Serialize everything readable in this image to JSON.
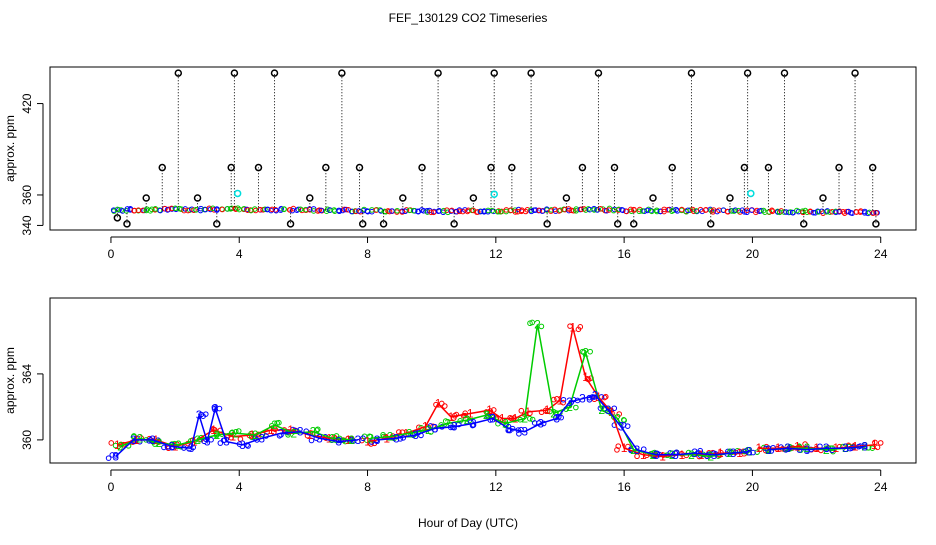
{
  "title": "FEF_130129  CO2 Timeseries",
  "xlabel": "Hour of Day (UTC)",
  "colors": {
    "one": "#ff0000",
    "two": "#00cc00",
    "three": "#0000ff",
    "outlier": "#000000",
    "cyan": "#00dddd",
    "frame": "#000000"
  },
  "chart_data": [
    {
      "type": "scatter",
      "panel": "top",
      "ylabel": "approx. ppm",
      "xlim": [
        -1.9,
        25.1
      ],
      "ylim": [
        337,
        444
      ],
      "xticks": [
        0,
        4,
        8,
        12,
        16,
        20,
        24
      ],
      "xtick_labels": [
        "0",
        "4",
        "8",
        "12",
        "16",
        "20",
        "24"
      ],
      "yticks": [
        340,
        360,
        420
      ],
      "ytick_labels": [
        "340",
        "360",
        "420"
      ],
      "spike_values_ppm": [
        341,
        358,
        378,
        440
      ],
      "spike_hours": [
        0.2,
        0.5,
        1.1,
        1.6,
        2.1,
        2.7,
        3.3,
        3.75,
        3.85,
        4.6,
        5.1,
        5.6,
        6.2,
        6.7,
        7.2,
        7.75,
        7.85,
        8.5,
        9.1,
        9.7,
        10.2,
        10.7,
        11.3,
        11.85,
        11.95,
        12.5,
        13.1,
        13.6,
        14.2,
        14.7,
        15.2,
        15.7,
        15.8,
        16.3,
        16.9,
        17.5,
        18.1,
        18.7,
        19.3,
        19.75,
        19.85,
        20.5,
        21.0,
        21.6,
        22.2,
        22.7,
        23.2,
        23.75,
        23.85
      ],
      "spike_levels_ppm": [
        345,
        341,
        358,
        378,
        440,
        358,
        341,
        378,
        440,
        378,
        440,
        341,
        358,
        378,
        440,
        378,
        341,
        341,
        358,
        378,
        440,
        341,
        358,
        378,
        440,
        378,
        440,
        341,
        358,
        378,
        440,
        378,
        341,
        341,
        358,
        378,
        440,
        341,
        358,
        378,
        440,
        378,
        440,
        341,
        358,
        378,
        440,
        378,
        341
      ],
      "cyan_points": [
        [
          3.95,
          361
        ],
        [
          11.95,
          360.5
        ],
        [
          19.95,
          361
        ]
      ],
      "baseline_note": "dense red/green/blue series near 350 ppm"
    },
    {
      "type": "line",
      "panel": "bottom",
      "ylabel": "approx. ppm",
      "xlim": [
        -1.9,
        25.1
      ],
      "ylim": [
        358.6,
        368.6
      ],
      "xticks": [
        0,
        4,
        8,
        12,
        16,
        20,
        24
      ],
      "xtick_labels": [
        "0",
        "4",
        "8",
        "12",
        "16",
        "20",
        "24"
      ],
      "yticks": [
        360,
        364
      ],
      "ytick_labels": [
        "360",
        "364"
      ],
      "series": [
        {
          "name": "1",
          "label": "1",
          "x": [
            0.2,
            0.8,
            1.4,
            2.0,
            2.6,
            3.2,
            3.8,
            4.4,
            5.0,
            5.6,
            6.2,
            6.8,
            7.4,
            8.0,
            8.6,
            9.2,
            9.8,
            10.2,
            10.6,
            11.2,
            11.8,
            12.2,
            12.6,
            13.0,
            13.6,
            14.0,
            14.4,
            14.8,
            15.2,
            15.6,
            16.0,
            16.6,
            17.2,
            17.8,
            18.4,
            19.0,
            19.6,
            20.2,
            20.8,
            21.4,
            22.0,
            22.6,
            23.2,
            23.8
          ],
          "y": [
            359.7,
            360.0,
            360.0,
            359.6,
            359.9,
            360.6,
            360.2,
            360.3,
            360.6,
            360.6,
            360.3,
            360.1,
            360.0,
            359.9,
            360.1,
            360.4,
            360.8,
            362.2,
            361.4,
            361.6,
            361.8,
            361.3,
            361.3,
            361.7,
            361.8,
            362.4,
            366.8,
            363.8,
            362.6,
            361.7,
            359.5,
            359.1,
            359.0,
            359.1,
            359.1,
            359.2,
            359.2,
            359.5,
            359.5,
            359.6,
            359.5,
            359.5,
            359.6,
            359.7
          ]
        },
        {
          "name": "2",
          "label": "2",
          "x": [
            0.3,
            0.9,
            1.5,
            2.1,
            2.7,
            3.3,
            3.9,
            4.5,
            5.1,
            5.7,
            6.3,
            6.9,
            7.5,
            8.1,
            8.7,
            9.3,
            9.9,
            10.5,
            11.1,
            11.7,
            12.3,
            12.9,
            13.3,
            13.8,
            14.3,
            14.8,
            15.3,
            15.8,
            16.3,
            16.9,
            17.5,
            18.1,
            18.7,
            19.3,
            19.9,
            20.5,
            21.1,
            21.7,
            22.3,
            22.9,
            23.5
          ],
          "y": [
            359.6,
            360.1,
            359.8,
            359.7,
            360.0,
            360.3,
            360.4,
            360.3,
            360.9,
            360.4,
            360.5,
            360.1,
            360.0,
            360.1,
            360.2,
            360.4,
            360.6,
            361.0,
            361.2,
            361.5,
            361.0,
            361.3,
            367.0,
            361.6,
            362.0,
            365.3,
            361.8,
            361.3,
            359.4,
            359.1,
            359.1,
            359.1,
            359.0,
            359.2,
            359.3,
            359.4,
            359.5,
            359.5,
            359.4,
            359.5,
            359.6
          ]
        },
        {
          "name": "3",
          "label": "3",
          "x": [
            0.15,
            0.7,
            1.3,
            1.9,
            2.5,
            2.75,
            3.0,
            3.25,
            3.6,
            4.1,
            4.7,
            5.3,
            5.9,
            6.5,
            7.1,
            7.7,
            8.3,
            8.9,
            9.5,
            10.1,
            10.7,
            11.3,
            11.9,
            12.4,
            12.9,
            13.4,
            13.9,
            14.3,
            14.7,
            15.1,
            15.5,
            15.9,
            16.4,
            17.0,
            17.6,
            18.2,
            18.8,
            19.4,
            19.9,
            20.5,
            21.1,
            21.7,
            22.3,
            22.9,
            23.5
          ],
          "y": [
            359.0,
            360.0,
            360.0,
            359.6,
            359.5,
            361.5,
            359.9,
            361.9,
            359.9,
            359.7,
            360.1,
            360.4,
            360.5,
            360.1,
            359.9,
            360.0,
            360.0,
            360.1,
            360.3,
            360.7,
            360.8,
            361.0,
            361.3,
            360.7,
            360.5,
            361.0,
            361.3,
            362.3,
            362.5,
            362.7,
            361.8,
            360.8,
            359.4,
            359.1,
            359.1,
            359.2,
            359.1,
            359.2,
            359.3,
            359.4,
            359.5,
            359.4,
            359.5,
            359.5,
            359.6
          ]
        }
      ]
    }
  ]
}
